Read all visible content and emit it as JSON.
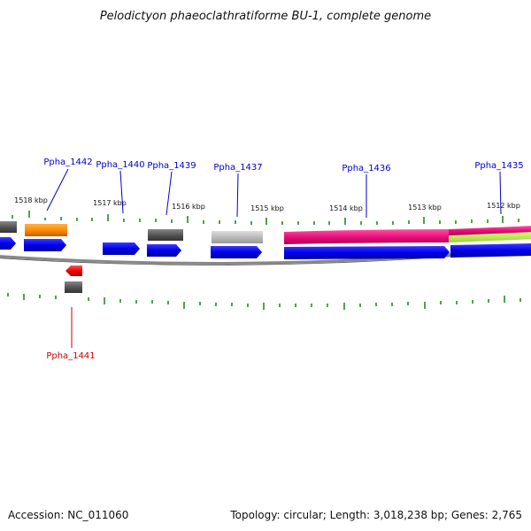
{
  "title": "Pelodictyon phaeoclathratiforme BU-1, complete genome",
  "footer": {
    "accession": "Accession: NC_011060",
    "topology": "Topology: circular; Length: 3,018,238 bp; Genes: 2,765"
  },
  "colors": {
    "label_blue": "#0000cc",
    "label_red": "#cc0000",
    "tick_green": "#228b22",
    "cds_blue": "#0000ee",
    "backbone": "#777777",
    "orange": "#ff8c00",
    "dark_gray": "#555555",
    "light_gray": "#bbbbbb",
    "magenta": "#e8107a",
    "lime": "#b8e84a",
    "red": "#ee0000"
  },
  "kbp_labels": [
    "1518 kbp",
    "1517 kbp",
    "1516 kbp",
    "1515 kbp",
    "1514 kbp",
    "1513 kbp",
    "1512 kbp"
  ],
  "gene_labels": [
    {
      "id": "Ppha_1442",
      "color": "blue"
    },
    {
      "id": "Ppha_1440",
      "color": "blue"
    },
    {
      "id": "Ppha_1439",
      "color": "blue"
    },
    {
      "id": "Ppha_1437",
      "color": "blue"
    },
    {
      "id": "Ppha_1436",
      "color": "blue"
    },
    {
      "id": "Ppha_1435",
      "color": "blue"
    },
    {
      "id": "Ppha_1441",
      "color": "red"
    }
  ]
}
